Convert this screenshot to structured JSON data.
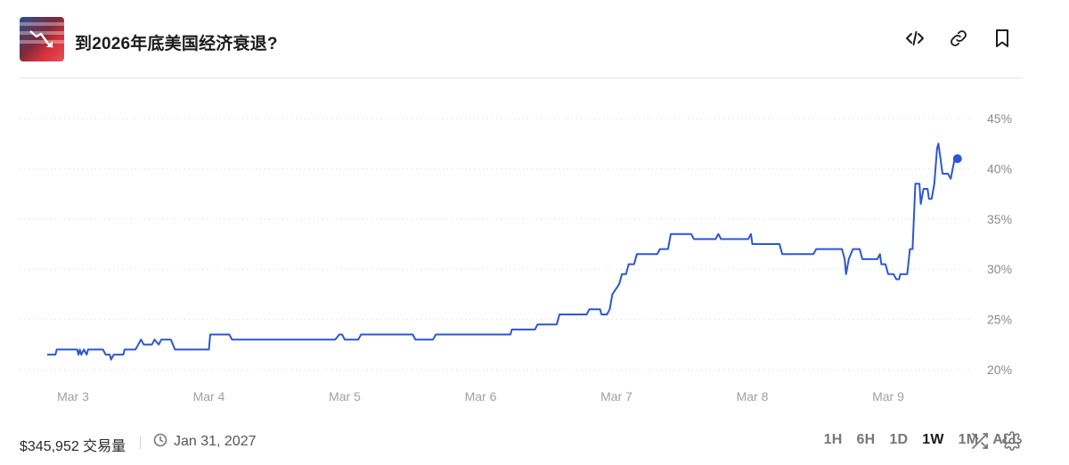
{
  "market": {
    "title": "到2026年底美国经济衰退?",
    "thumbnail_icon": "us-flag-recession-chart-icon"
  },
  "header_actions": {
    "embed_icon": "code-icon",
    "link_icon": "link-icon",
    "bookmark_icon": "bookmark-icon"
  },
  "footer": {
    "volume": "$345,952 交易量",
    "end_date": "Jan 31, 2027",
    "ranges": [
      "1H",
      "6H",
      "1D",
      "1W",
      "1M",
      "ALL"
    ],
    "active_range": "1W",
    "shuffle_icon": "shuffle-icon",
    "settings_icon": "settings-gear-icon"
  },
  "colors": {
    "line": "#2c56d6",
    "grid": "#d9d9d9",
    "axis_text": "#8a8a8a"
  },
  "chart_data": {
    "type": "line",
    "x_tick_labels": [
      "Mar 3",
      "Mar 4",
      "Mar 5",
      "Mar 6",
      "Mar 7",
      "Mar 8",
      "Mar 9"
    ],
    "y_tick_labels": [
      "45%",
      "40%",
      "35%",
      "30%",
      "25%",
      "20%"
    ],
    "ylim": [
      20,
      45
    ],
    "y_unit": "%",
    "grid": "horizontal-dotted",
    "series": [
      {
        "values": [
          [
            2.81,
            21.5
          ],
          [
            2.87,
            21.5
          ],
          [
            2.88,
            22.0
          ],
          [
            3.0,
            22.0
          ],
          [
            3.03,
            22.0
          ],
          [
            3.04,
            21.5
          ],
          [
            3.05,
            22.0
          ],
          [
            3.06,
            21.5
          ],
          [
            3.08,
            22.0
          ],
          [
            3.1,
            21.5
          ],
          [
            3.11,
            22.0
          ],
          [
            3.22,
            22.0
          ],
          [
            3.24,
            21.5
          ],
          [
            3.27,
            21.5
          ],
          [
            3.28,
            21.0
          ],
          [
            3.3,
            21.5
          ],
          [
            3.37,
            21.5
          ],
          [
            3.38,
            22.0
          ],
          [
            3.46,
            22.0
          ],
          [
            3.5,
            23.0
          ],
          [
            3.52,
            22.5
          ],
          [
            3.58,
            22.5
          ],
          [
            3.6,
            23.0
          ],
          [
            3.63,
            22.5
          ],
          [
            3.65,
            23.0
          ],
          [
            3.72,
            23.0
          ],
          [
            3.75,
            22.0
          ],
          [
            3.95,
            22.0
          ],
          [
            4.0,
            22.0
          ],
          [
            4.01,
            23.5
          ],
          [
            4.15,
            23.5
          ],
          [
            4.17,
            23.0
          ],
          [
            4.93,
            23.0
          ],
          [
            4.96,
            23.5
          ],
          [
            4.98,
            23.5
          ],
          [
            5.0,
            23.0
          ],
          [
            5.1,
            23.0
          ],
          [
            5.12,
            23.5
          ],
          [
            5.5,
            23.5
          ],
          [
            5.52,
            23.0
          ],
          [
            5.65,
            23.0
          ],
          [
            5.67,
            23.5
          ],
          [
            6.22,
            23.5
          ],
          [
            6.23,
            24.0
          ],
          [
            6.4,
            24.0
          ],
          [
            6.42,
            24.5
          ],
          [
            6.56,
            24.5
          ],
          [
            6.58,
            25.5
          ],
          [
            6.78,
            25.5
          ],
          [
            6.8,
            26.0
          ],
          [
            6.88,
            26.0
          ],
          [
            6.89,
            25.5
          ],
          [
            6.93,
            25.5
          ],
          [
            6.95,
            26.0
          ],
          [
            6.97,
            27.5
          ],
          [
            7.02,
            28.5
          ],
          [
            7.04,
            29.5
          ],
          [
            7.07,
            29.5
          ],
          [
            7.09,
            30.5
          ],
          [
            7.13,
            30.5
          ],
          [
            7.15,
            31.5
          ],
          [
            7.3,
            31.5
          ],
          [
            7.32,
            32.0
          ],
          [
            7.38,
            32.0
          ],
          [
            7.4,
            33.5
          ],
          [
            7.55,
            33.5
          ],
          [
            7.57,
            33.0
          ],
          [
            7.73,
            33.0
          ],
          [
            7.75,
            33.5
          ],
          [
            7.77,
            33.0
          ],
          [
            7.97,
            33.0
          ],
          [
            7.99,
            33.5
          ],
          [
            8.0,
            32.5
          ],
          [
            8.2,
            32.5
          ],
          [
            8.22,
            31.5
          ],
          [
            8.45,
            31.5
          ],
          [
            8.47,
            32.0
          ],
          [
            8.66,
            32.0
          ],
          [
            8.68,
            31.0
          ],
          [
            8.69,
            29.5
          ],
          [
            8.71,
            31.0
          ],
          [
            8.74,
            32.0
          ],
          [
            8.79,
            32.0
          ],
          [
            8.81,
            31.0
          ],
          [
            8.92,
            31.0
          ],
          [
            8.94,
            31.5
          ],
          [
            8.95,
            30.5
          ],
          [
            8.98,
            30.5
          ],
          [
            9.0,
            29.5
          ],
          [
            9.04,
            29.5
          ],
          [
            9.06,
            29.0
          ],
          [
            9.08,
            29.0
          ],
          [
            9.09,
            29.5
          ],
          [
            9.14,
            29.5
          ],
          [
            9.16,
            32.0
          ],
          [
            9.18,
            32.0
          ],
          [
            9.2,
            38.5
          ],
          [
            9.23,
            38.5
          ],
          [
            9.24,
            36.5
          ],
          [
            9.26,
            38.0
          ],
          [
            9.29,
            38.0
          ],
          [
            9.3,
            37.0
          ],
          [
            9.32,
            37.0
          ],
          [
            9.34,
            38.5
          ],
          [
            9.36,
            42.0
          ],
          [
            9.37,
            42.5
          ],
          [
            9.38,
            41.5
          ],
          [
            9.4,
            39.5
          ],
          [
            9.44,
            39.5
          ],
          [
            9.46,
            39.0
          ],
          [
            9.49,
            41.0
          ],
          [
            9.51,
            41.0
          ]
        ]
      }
    ]
  }
}
